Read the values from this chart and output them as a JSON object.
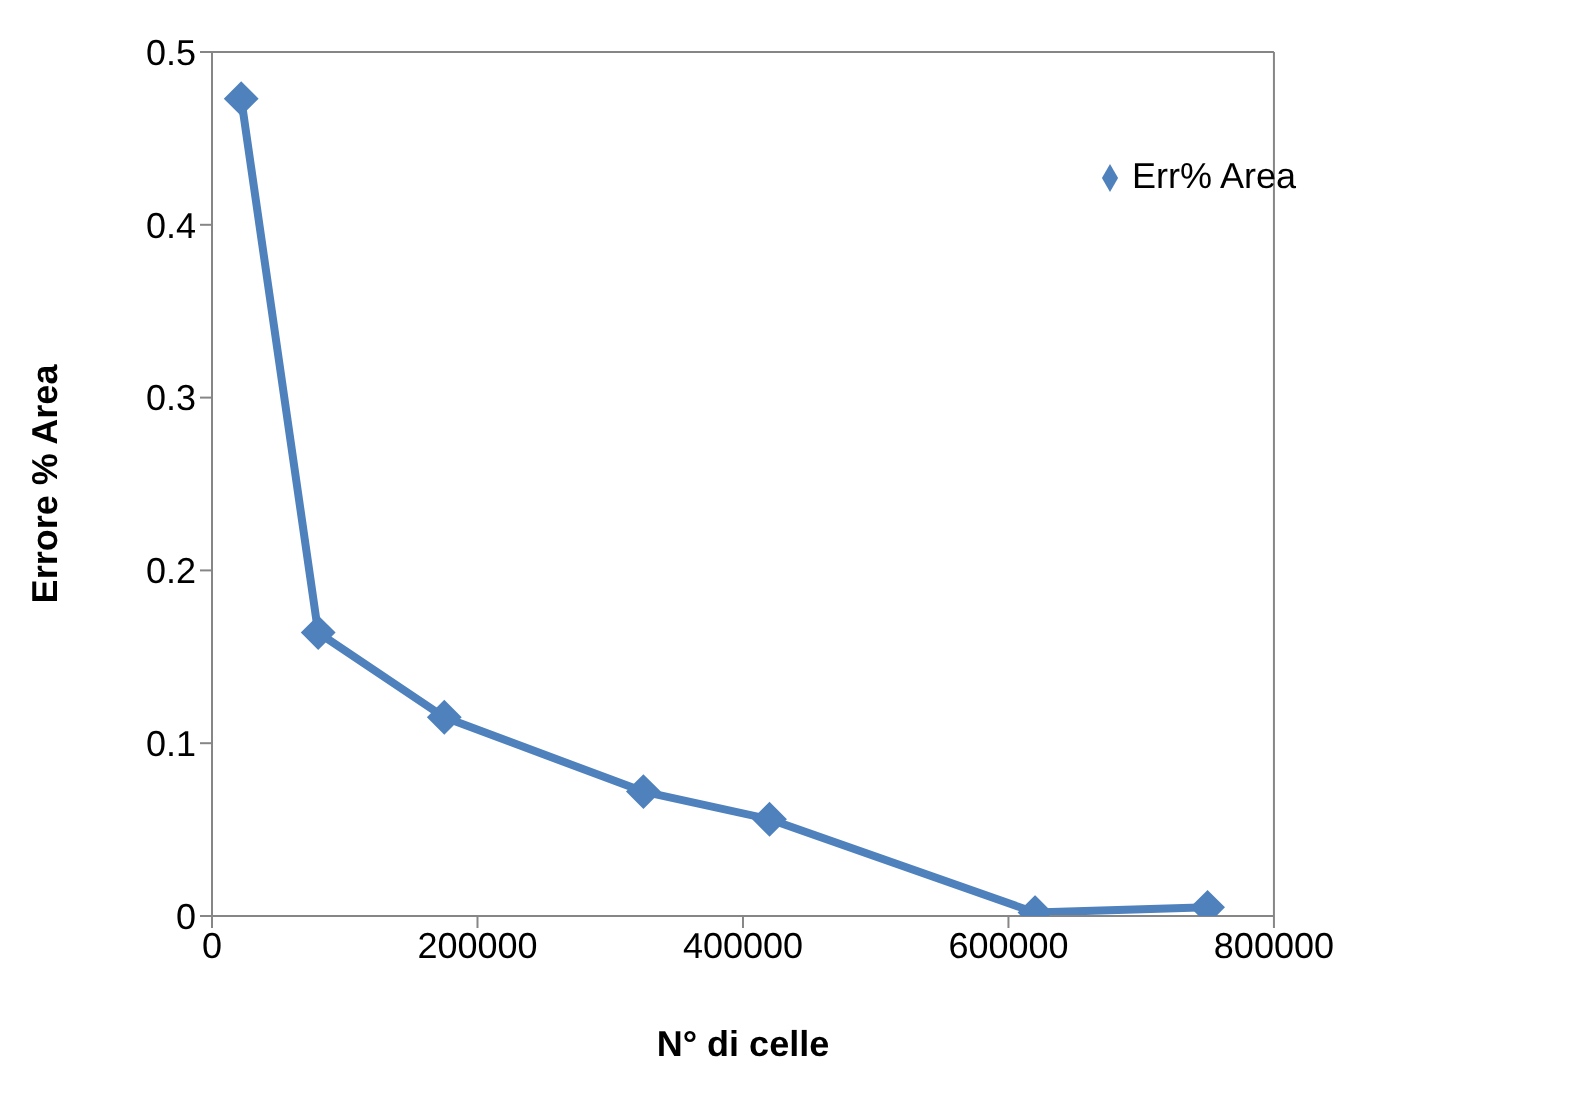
{
  "chart_data": {
    "type": "line",
    "xlabel": "N° di celle",
    "ylabel": "Errore % Area",
    "x": [
      22000,
      80000,
      175000,
      325000,
      420000,
      620000,
      750000
    ],
    "series": [
      {
        "name": "Err% Area",
        "color": "#4f81bd",
        "values": [
          0.473,
          0.164,
          0.115,
          0.072,
          0.056,
          0.002,
          0.005
        ]
      }
    ],
    "xlim": [
      0,
      800000
    ],
    "xticks": [
      0,
      200000,
      400000,
      600000,
      800000
    ],
    "ylim": [
      0,
      0.5
    ],
    "yticks": [
      0,
      0.1,
      0.2,
      0.3,
      0.4,
      0.5
    ],
    "grid": false,
    "legend": "top right",
    "marker": "diamond",
    "line_style": "solid"
  }
}
